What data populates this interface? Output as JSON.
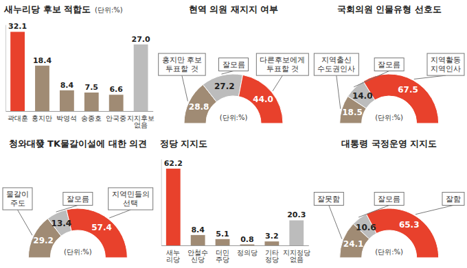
{
  "chart_data": [
    {
      "type": "bar",
      "title": "새누리당 후보 적합도",
      "subtitle": "(단위:%)",
      "categories": [
        "곽대훈",
        "홍지만",
        "박영석",
        "송종호",
        "안국중",
        "지지후보 없음"
      ],
      "values": [
        32.1,
        18.4,
        8.4,
        7.5,
        6.6,
        27.0
      ],
      "value_labels": [
        "32.1",
        "18.4",
        "8.4",
        "7.5",
        "6.6",
        "27.0"
      ],
      "colors": [
        "#e8412c",
        "#a08b74",
        "#a08b74",
        "#a08b74",
        "#a08b74",
        "#bcbcbc"
      ],
      "ylim": [
        0,
        35
      ],
      "data_labels": true,
      "tick_labels": "x"
    },
    {
      "type": "donut",
      "title": "현역 의원 재지지 여부",
      "subtitle": "(단위:%)",
      "categories": [
        "홍지만 후보 투표할 것",
        "잘모름",
        "다른후보에게 투표할 것"
      ],
      "values": [
        28.8,
        27.2,
        44.0
      ],
      "value_labels": [
        "28.8",
        "27.2",
        "44.0"
      ],
      "colors": [
        "#a08b74",
        "#bcbcbc",
        "#e8412c"
      ],
      "data_labels": true
    },
    {
      "type": "donut",
      "title": "국회의원 인물유형 선호도",
      "subtitle": "(단위:%)",
      "categories": [
        "지역출신 수도권인사",
        "잘모름",
        "지역활동 지역인사"
      ],
      "values": [
        18.5,
        14.0,
        67.5
      ],
      "value_labels": [
        "18.5",
        "14.0",
        "67.5"
      ],
      "colors": [
        "#a08b74",
        "#bcbcbc",
        "#e8412c"
      ],
      "data_labels": true
    },
    {
      "type": "donut",
      "title": "청와대發 TK물갈이설에 대한 의견",
      "subtitle": "(단위:%)",
      "categories": [
        "물갈이 주도",
        "잘모름",
        "지역민들의 선택"
      ],
      "values": [
        29.2,
        13.4,
        57.4
      ],
      "value_labels": [
        "29.2",
        "13.4",
        "57.4"
      ],
      "colors": [
        "#a08b74",
        "#bcbcbc",
        "#e8412c"
      ],
      "data_labels": true
    },
    {
      "type": "bar",
      "title": "정당 지지도",
      "categories": [
        "새누리당",
        "안철수신당",
        "더민주당",
        "정의당",
        "기타정당",
        "지지정당없음"
      ],
      "values": [
        62.2,
        8.4,
        5.1,
        0.8,
        3.2,
        20.3
      ],
      "value_labels": [
        "62.2",
        "8.4",
        "5.1",
        "0.8",
        "3.2",
        "20.3"
      ],
      "colors": [
        "#e8412c",
        "#a08b74",
        "#a08b74",
        "#a08b74",
        "#a08b74",
        "#bcbcbc"
      ],
      "ylim": [
        0,
        70
      ],
      "data_labels": true,
      "tick_labels": "x"
    },
    {
      "type": "donut",
      "title": "대통령 국정운영 지지도",
      "subtitle": "(단위:%)",
      "categories": [
        "잘못함",
        "잘모름",
        "잘함"
      ],
      "values": [
        24.1,
        10.6,
        65.3
      ],
      "value_labels": [
        "24.1",
        "10.6",
        "65.3"
      ],
      "colors": [
        "#a08b74",
        "#bcbcbc",
        "#e8412c"
      ],
      "data_labels": true
    }
  ]
}
